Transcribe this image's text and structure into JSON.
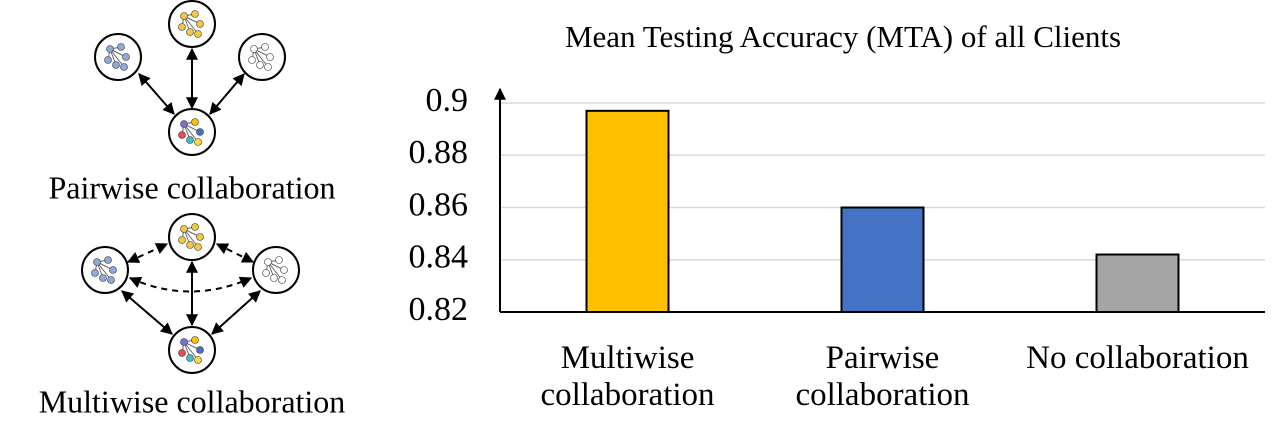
{
  "chart_data": {
    "type": "bar",
    "title": "Mean Testing Accuracy (MTA) of all Clients",
    "categories": [
      "Multiwise collaboration",
      "Pairwise collaboration",
      "No collaboration"
    ],
    "values": [
      0.897,
      0.86,
      0.842
    ],
    "colors": [
      "#ffc000",
      "#4472c4",
      "#a5a5a5"
    ],
    "ylim": [
      0.82,
      0.9
    ],
    "yticks": [
      0.82,
      0.84,
      0.86,
      0.88,
      0.9
    ],
    "grid": true
  },
  "diagram": {
    "labels": [
      "Pairwise collaboration",
      "Multiwise collaboration"
    ]
  }
}
